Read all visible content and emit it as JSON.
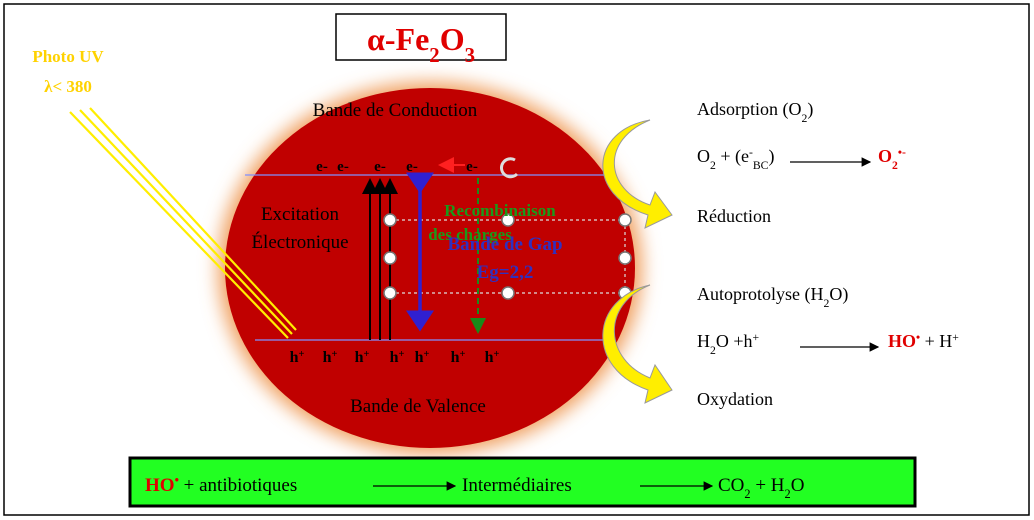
{
  "title": [
    {
      "text": "α-Fe"
    },
    {
      "text": "2",
      "pos": "sub"
    },
    {
      "text": "O"
    },
    {
      "text": "3",
      "pos": "sub"
    }
  ],
  "light": {
    "line1": "Photo UV",
    "line2": "λ< 380"
  },
  "particle": {
    "conduction_band": "Bande de Conduction",
    "valence_band": "Bande de Valence",
    "excitation": [
      "Excitation",
      "Électronique"
    ],
    "recombination": [
      "Recombinaison",
      "des charges"
    ],
    "gap": [
      "Bande de Gap",
      "Eg=2,2"
    ],
    "electrons": [
      "e-",
      "e-",
      "e-",
      "e-",
      "e-"
    ],
    "holes": [
      [
        {
          "text": "h"
        },
        {
          "text": "+",
          "pos": "sup"
        }
      ],
      [
        {
          "text": "h"
        },
        {
          "text": "+",
          "pos": "sup"
        }
      ],
      [
        {
          "text": "h"
        },
        {
          "text": "+",
          "pos": "sup"
        }
      ],
      [
        {
          "text": "h"
        },
        {
          "text": "+",
          "pos": "sup"
        }
      ],
      [
        {
          "text": "h"
        },
        {
          "text": "+",
          "pos": "sup"
        }
      ],
      [
        {
          "text": "h"
        },
        {
          "text": "+",
          "pos": "sup"
        }
      ],
      [
        {
          "text": "h"
        },
        {
          "text": "+",
          "pos": "sup"
        }
      ]
    ]
  },
  "reactions": [
    {
      "title": [
        {
          "text": "Adsorption (O"
        },
        {
          "text": "2",
          "pos": "sub"
        },
        {
          "text": ")"
        }
      ],
      "reactants": [
        {
          "text": "O"
        },
        {
          "text": "2",
          "pos": "sub"
        },
        {
          "text": " + (e"
        },
        {
          "text": "-",
          "pos": "sup"
        },
        {
          "text": "BC",
          "pos": "sub"
        },
        {
          "text": ")"
        }
      ],
      "products": [
        {
          "text": "O",
          "color": "#e00000"
        },
        {
          "text": "2",
          "pos": "sub",
          "color": "#e00000"
        },
        {
          "text": "•-",
          "pos": "sup",
          "color": "#e00000"
        }
      ],
      "result": "Réduction"
    },
    {
      "title": [
        {
          "text": "Autoprotolyse (H"
        },
        {
          "text": "2",
          "pos": "sub"
        },
        {
          "text": "O)"
        }
      ],
      "reactants": [
        {
          "text": "H"
        },
        {
          "text": "2",
          "pos": "sub"
        },
        {
          "text": "O +h"
        },
        {
          "text": "+",
          "pos": "sup"
        }
      ],
      "products": [
        {
          "text": "HO",
          "color": "#e00000"
        },
        {
          "text": "•",
          "pos": "sup",
          "color": "#e00000"
        },
        {
          "text": " + H"
        },
        {
          "text": "+",
          "pos": "sup"
        }
      ],
      "result": "Oxydation"
    }
  ],
  "summary": [
    [
      {
        "text": "HO",
        "color": "#e00000"
      },
      {
        "text": "•",
        "pos": "sup",
        "color": "#e00000"
      },
      {
        "text": " + antibiotiques"
      }
    ],
    [
      {
        "text": "Intermédiaires"
      }
    ],
    [
      {
        "text": "CO"
      },
      {
        "text": "2",
        "pos": "sub"
      },
      {
        "text": " + H"
      },
      {
        "text": "2",
        "pos": "sub"
      },
      {
        "text": "O"
      }
    ]
  ]
}
